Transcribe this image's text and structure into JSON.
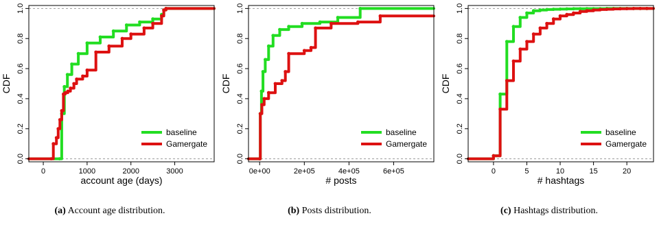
{
  "colors": {
    "baseline": "#22dd22",
    "gamergate": "#dd1111",
    "refline": "#9a9a9a",
    "axis": "#000000"
  },
  "chart_data": [
    {
      "type": "line",
      "step": true,
      "ylabel": "CDF",
      "xlabel": "account age (days)",
      "xlim": [
        -330,
        3900
      ],
      "ylim": [
        -0.02,
        1.02
      ],
      "xticks": [
        0,
        1000,
        2000,
        3000
      ],
      "xtick_labels": [
        "0",
        "1000",
        "2000",
        "3000"
      ],
      "yticks": [
        0,
        0.2,
        0.4,
        0.6,
        0.8,
        1.0
      ],
      "ytick_labels": [
        "0.0",
        "0.2",
        "0.4",
        "0.6",
        "0.8",
        "1.0"
      ],
      "legend": "bottom-right",
      "series": [
        {
          "name": "baseline",
          "x": [
            -330,
            370,
            420,
            480,
            550,
            650,
            800,
            1000,
            1300,
            1600,
            1900,
            2200,
            2500,
            2700,
            2750,
            2800,
            3900
          ],
          "y": [
            0,
            0,
            0.3,
            0.48,
            0.56,
            0.63,
            0.7,
            0.77,
            0.81,
            0.85,
            0.89,
            0.91,
            0.93,
            0.96,
            0.99,
            1.0,
            1.0
          ]
        },
        {
          "name": "Gamergate",
          "x": [
            -330,
            180,
            230,
            300,
            340,
            380,
            420,
            460,
            500,
            560,
            620,
            700,
            760,
            900,
            1000,
            1200,
            1500,
            1800,
            2000,
            2300,
            2500,
            2700,
            2750,
            2800,
            3900
          ],
          "y": [
            0,
            0,
            0.1,
            0.14,
            0.2,
            0.26,
            0.32,
            0.43,
            0.44,
            0.45,
            0.47,
            0.5,
            0.53,
            0.55,
            0.59,
            0.71,
            0.75,
            0.8,
            0.83,
            0.87,
            0.9,
            0.95,
            0.99,
            1.0,
            1.0
          ]
        }
      ]
    },
    {
      "type": "line",
      "step": true,
      "ylabel": "CDF",
      "xlabel": "# posts",
      "xlim": [
        -50000,
        780000
      ],
      "ylim": [
        -0.02,
        1.02
      ],
      "xticks": [
        0,
        200000,
        400000,
        600000
      ],
      "xtick_labels": [
        "0e+00",
        "2e+05",
        "4e+05",
        "6e+05"
      ],
      "yticks": [
        0,
        0.2,
        0.4,
        0.6,
        0.8,
        1.0
      ],
      "ytick_labels": [
        "0.0",
        "0.2",
        "0.4",
        "0.6",
        "0.8",
        "1.0"
      ],
      "legend": "bottom-right",
      "series": [
        {
          "name": "baseline",
          "x": [
            -50000,
            0,
            3000,
            8000,
            15000,
            25000,
            40000,
            60000,
            90000,
            130000,
            190000,
            270000,
            350000,
            450000,
            780000
          ],
          "y": [
            0,
            0,
            0.3,
            0.45,
            0.58,
            0.66,
            0.75,
            0.82,
            0.86,
            0.88,
            0.9,
            0.91,
            0.94,
            1.0,
            1.0
          ]
        },
        {
          "name": "Gamergate",
          "x": [
            -50000,
            0,
            3000,
            10000,
            20000,
            40000,
            70000,
            100000,
            115000,
            130000,
            200000,
            230000,
            250000,
            320000,
            440000,
            540000,
            780000
          ],
          "y": [
            0,
            0,
            0.3,
            0.36,
            0.4,
            0.44,
            0.5,
            0.52,
            0.58,
            0.7,
            0.72,
            0.74,
            0.87,
            0.9,
            0.91,
            0.95,
            0.95
          ]
        }
      ]
    },
    {
      "type": "line",
      "step": true,
      "ylabel": "CDF",
      "xlabel": "# hashtags",
      "xlim": [
        -3.8,
        24
      ],
      "ylim": [
        -0.02,
        1.02
      ],
      "xticks": [
        0,
        5,
        10,
        15,
        20
      ],
      "xtick_labels": [
        "0",
        "5",
        "10",
        "15",
        "20"
      ],
      "yticks": [
        0,
        0.2,
        0.4,
        0.6,
        0.8,
        1.0
      ],
      "ytick_labels": [
        "0.0",
        "0.2",
        "0.4",
        "0.6",
        "0.8",
        "1.0"
      ],
      "legend": "bottom-right",
      "series": [
        {
          "name": "baseline",
          "x": [
            -3.8,
            0,
            1,
            2,
            3,
            4,
            5,
            6,
            7,
            8,
            9,
            10,
            11,
            12,
            13,
            14,
            15,
            16,
            17,
            18,
            19,
            20,
            21,
            22,
            23,
            24
          ],
          "y": [
            0,
            0.02,
            0.43,
            0.78,
            0.88,
            0.94,
            0.97,
            0.985,
            0.99,
            0.993,
            0.995,
            0.996,
            0.997,
            0.998,
            0.998,
            0.999,
            0.999,
            0.999,
            1.0,
            1.0,
            1.0,
            1.0,
            1.0,
            1.0,
            1.0,
            1.0
          ]
        },
        {
          "name": "Gamergate",
          "x": [
            -3.8,
            0,
            1,
            2,
            3,
            4,
            5,
            6,
            7,
            8,
            9,
            10,
            11,
            12,
            13,
            14,
            15,
            16,
            17,
            18,
            19,
            20,
            21,
            22,
            23,
            24
          ],
          "y": [
            0,
            0.02,
            0.33,
            0.52,
            0.65,
            0.73,
            0.78,
            0.83,
            0.87,
            0.9,
            0.93,
            0.95,
            0.96,
            0.97,
            0.98,
            0.985,
            0.99,
            0.993,
            0.995,
            0.997,
            0.998,
            0.999,
            1.0,
            1.0,
            1.0,
            1.0
          ]
        }
      ]
    }
  ],
  "captions": [
    {
      "label": "(a)",
      "text": "Account age distribution."
    },
    {
      "label": "(b)",
      "text": "Posts distribution."
    },
    {
      "label": "(c)",
      "text": "Hashtags distribution."
    }
  ]
}
